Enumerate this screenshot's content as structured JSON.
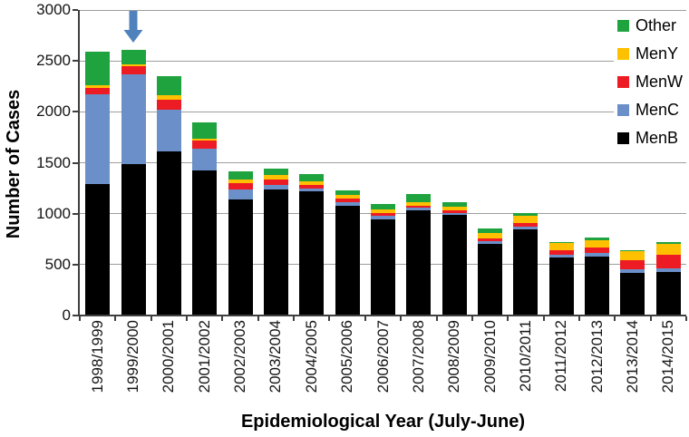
{
  "chart_data": {
    "type": "bar",
    "stacked": true,
    "title": "",
    "xlabel": "Epidemiological Year (July-June)",
    "ylabel": "Number of Cases",
    "ylim": [
      0,
      3000
    ],
    "yticks": [
      0,
      500,
      1000,
      1500,
      2000,
      2500,
      3000
    ],
    "grid": "horizontal",
    "legend_position": "top-right-inside",
    "legend_order_top_to_bottom": [
      "Other",
      "MenY",
      "MenW",
      "MenC",
      "MenB"
    ],
    "categories": [
      "1998/1999",
      "1999/2000",
      "2000/2001",
      "2001/2002",
      "2002/2003",
      "2003/2004",
      "2004/2005",
      "2005/2006",
      "2006/2007",
      "2007/2008",
      "2008/2009",
      "2009/2010",
      "2010/2011",
      "2011/2012",
      "2012/2013",
      "2013/2014",
      "2014/2015"
    ],
    "series": [
      {
        "name": "MenB",
        "color": "#000000",
        "values": [
          1290,
          1490,
          1615,
          1420,
          1140,
          1235,
          1215,
          1075,
          940,
          1030,
          985,
          705,
          845,
          570,
          580,
          420,
          430
        ]
      },
      {
        "name": "MenC",
        "color": "#6b90c9",
        "values": [
          885,
          880,
          410,
          220,
          95,
          45,
          30,
          35,
          35,
          25,
          20,
          25,
          25,
          30,
          30,
          30,
          30
        ]
      },
      {
        "name": "MenW",
        "color": "#ed1c24",
        "values": [
          55,
          75,
          95,
          75,
          65,
          55,
          35,
          35,
          35,
          25,
          25,
          25,
          40,
          40,
          60,
          90,
          140
        ]
      },
      {
        "name": "MenY",
        "color": "#ffc000",
        "values": [
          30,
          25,
          45,
          20,
          35,
          45,
          35,
          35,
          35,
          30,
          35,
          55,
          65,
          70,
          65,
          95,
          100
        ]
      },
      {
        "name": "Other",
        "color": "#1ea33e",
        "values": [
          330,
          140,
          185,
          160,
          80,
          60,
          75,
          50,
          50,
          85,
          45,
          45,
          30,
          15,
          30,
          10,
          20
        ]
      }
    ],
    "annotation": {
      "shape": "down-arrow",
      "points_to_category": "1999/2000",
      "color": "#4f81bd"
    },
    "axis_colors": {
      "axis_line": "#3f3f3f",
      "gridline": "#9e9e9e",
      "tick_text": "#141414"
    }
  }
}
